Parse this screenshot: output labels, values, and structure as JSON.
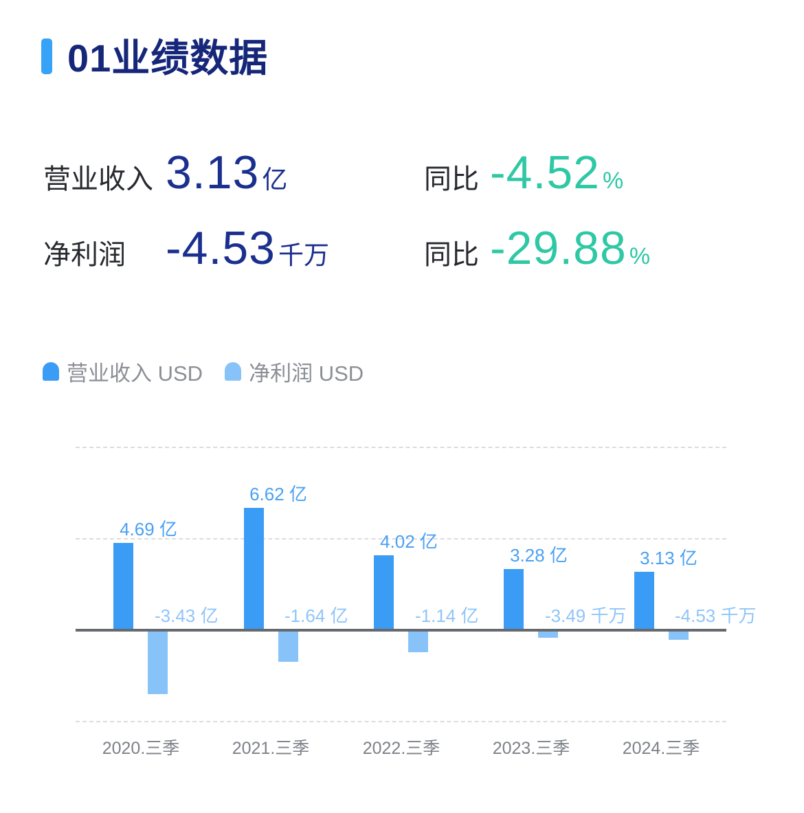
{
  "header": {
    "title": "01业绩数据",
    "accent_color": "#36a3f9",
    "title_color": "#16277a"
  },
  "metrics": {
    "revenue": {
      "label": "营业收入",
      "value": "3.13",
      "unit": "亿",
      "value_color": "#1a2f8e"
    },
    "revenue_yoy": {
      "label": "同比",
      "value": "-4.52",
      "unit": "%",
      "value_color": "#2ec8a5"
    },
    "profit": {
      "label": "净利润",
      "value": "-4.53",
      "unit": "千万",
      "value_color": "#1a2f8e"
    },
    "profit_yoy": {
      "label": "同比",
      "value": "-29.88",
      "unit": "%",
      "value_color": "#2ec8a5"
    }
  },
  "legend": [
    {
      "label": "营业收入 USD",
      "color": "#3b9cf5"
    },
    {
      "label": "净利润 USD",
      "color": "#87c3f9"
    }
  ],
  "chart_data": {
    "type": "bar",
    "categories": [
      "2020.三季",
      "2021.三季",
      "2022.三季",
      "2023.三季",
      "2024.三季"
    ],
    "series": [
      {
        "name": "营业收入 USD",
        "values_yi": [
          4.69,
          6.62,
          4.02,
          3.28,
          3.13
        ],
        "labels": [
          "4.69 亿",
          "6.62 亿",
          "4.02 亿",
          "3.28 亿",
          "3.13 亿"
        ],
        "color": "#3b9cf5",
        "label_color": "#4aa0f3"
      },
      {
        "name": "净利润 USD",
        "values_yi": [
          -3.43,
          -1.64,
          -1.14,
          -0.349,
          -0.453
        ],
        "labels": [
          "-3.43 亿",
          "-1.64 亿",
          "-1.14 亿",
          "-3.49 千万",
          "-4.53 千万"
        ],
        "color": "#87c3f9",
        "label_color": "#8fc5f9"
      }
    ],
    "unit": "亿 USD",
    "ylim": [
      -5,
      10
    ],
    "gridlines_yi": [
      10,
      5,
      -5
    ],
    "grid_on": true,
    "legend_position": "top-left",
    "axis_color": "#66696e",
    "grid_color": "#dcdcdc",
    "tick_color": "#7e8188"
  }
}
